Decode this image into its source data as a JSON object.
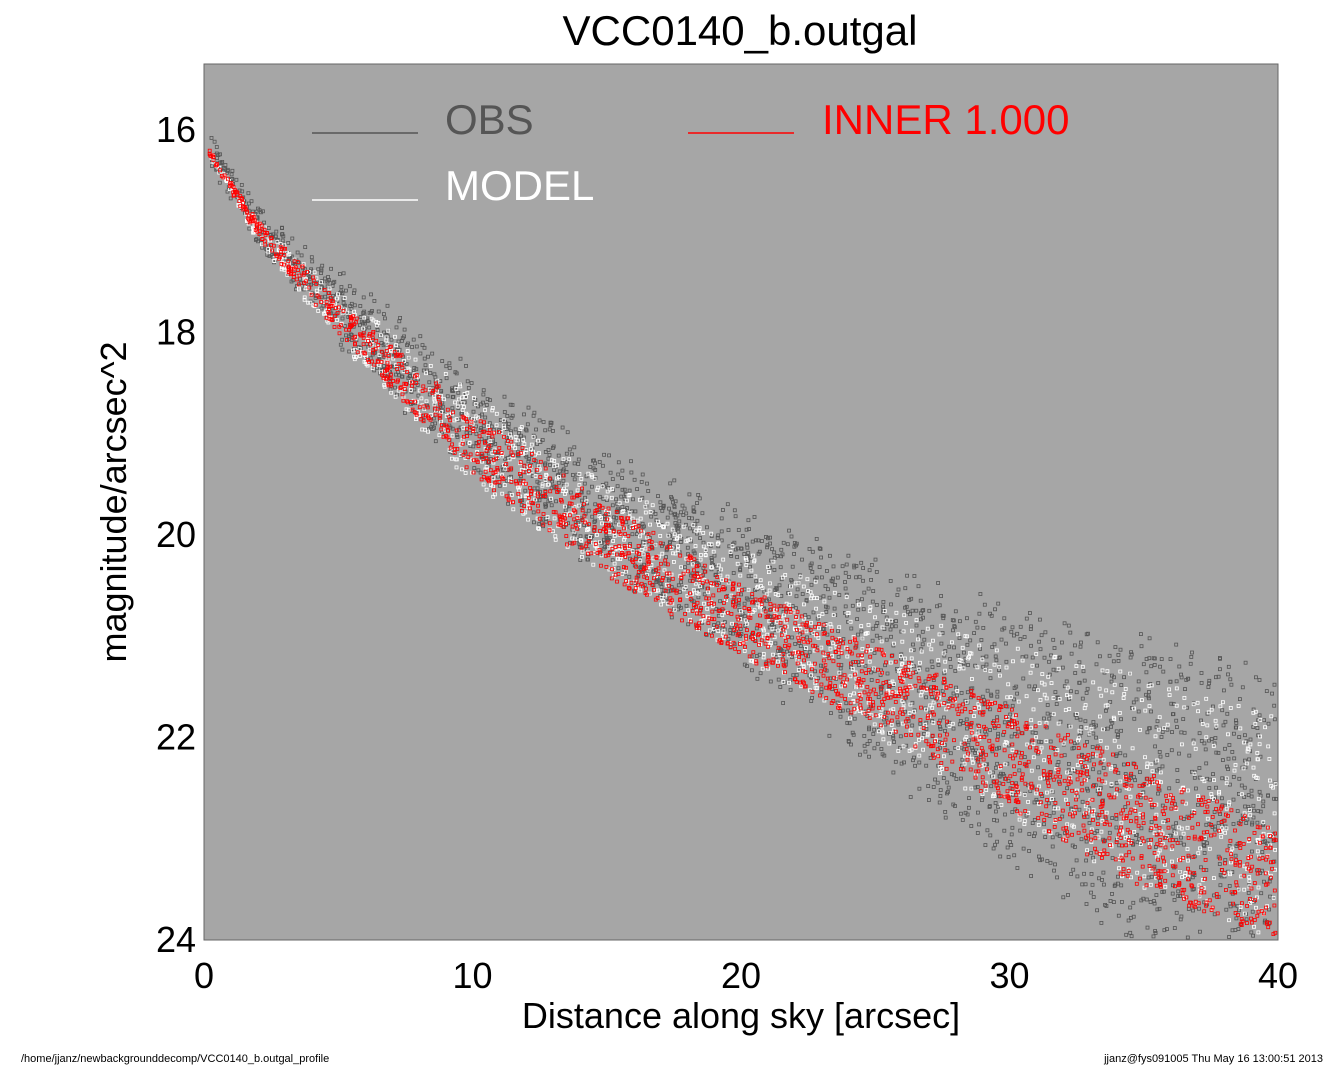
{
  "chart_data": {
    "type": "scatter",
    "title": "VCC0140_b.outgal",
    "xlabel": "Distance along sky [arcsec]",
    "ylabel": "magnitude/arcsec^2",
    "xlim": [
      0,
      40
    ],
    "ylim": [
      24,
      15.35
    ],
    "y_inverted": true,
    "xticks": [
      "0",
      "10",
      "20",
      "30",
      "40"
    ],
    "yticks": [
      "16",
      "18",
      "20",
      "22",
      "24"
    ],
    "background_color": "#a6a6a6",
    "grid": false,
    "legend": [
      {
        "label": "OBS",
        "color": "#555555"
      },
      {
        "label": "MODEL",
        "color": "#ffffff"
      },
      {
        "label": "INNER  1.000",
        "color": "#ff0000"
      }
    ],
    "series": [
      {
        "name": "OBS",
        "color": "#555555",
        "marker": "square-open",
        "x": [
          0.2,
          2,
          5,
          10,
          15,
          20,
          25,
          30,
          35,
          40
        ],
        "y_upper": [
          16.2,
          16.9,
          17.5,
          18.5,
          19.3,
          19.8,
          20.4,
          20.8,
          21.1,
          21.4
        ],
        "y_lower": [
          16.2,
          17.0,
          18.0,
          19.3,
          20.3,
          21.2,
          22.2,
          23.2,
          24.0,
          24.0
        ]
      },
      {
        "name": "MODEL",
        "color": "#ffffff",
        "marker": "square-open",
        "x": [
          0.2,
          2,
          5,
          10,
          15,
          20,
          25,
          30,
          35,
          40
        ],
        "y_upper": [
          16.2,
          16.9,
          17.6,
          18.6,
          19.5,
          20.1,
          20.7,
          21.1,
          21.4,
          21.8
        ],
        "y_lower": [
          16.25,
          17.1,
          18.1,
          19.5,
          20.4,
          21.2,
          22.0,
          22.8,
          23.5,
          24.0
        ]
      },
      {
        "name": "INNER",
        "color": "#ff0000",
        "marker": "square-open",
        "x": [
          0.2,
          2,
          5,
          10,
          15,
          20,
          25,
          30,
          35,
          40
        ],
        "y_upper": [
          16.2,
          16.9,
          17.7,
          18.8,
          19.7,
          20.5,
          21.1,
          21.7,
          22.3,
          22.9
        ],
        "y_lower": [
          16.25,
          17.05,
          18.0,
          19.4,
          20.4,
          21.2,
          21.9,
          22.7,
          23.5,
          24.0
        ]
      }
    ]
  },
  "footer": {
    "path": "/home/jjanz/newbackgrounddecomp/VCC0140_b.outgal_profile",
    "user_timestamp": "jjanz@fys091005  Thu May 16 13:00:51 2013"
  }
}
